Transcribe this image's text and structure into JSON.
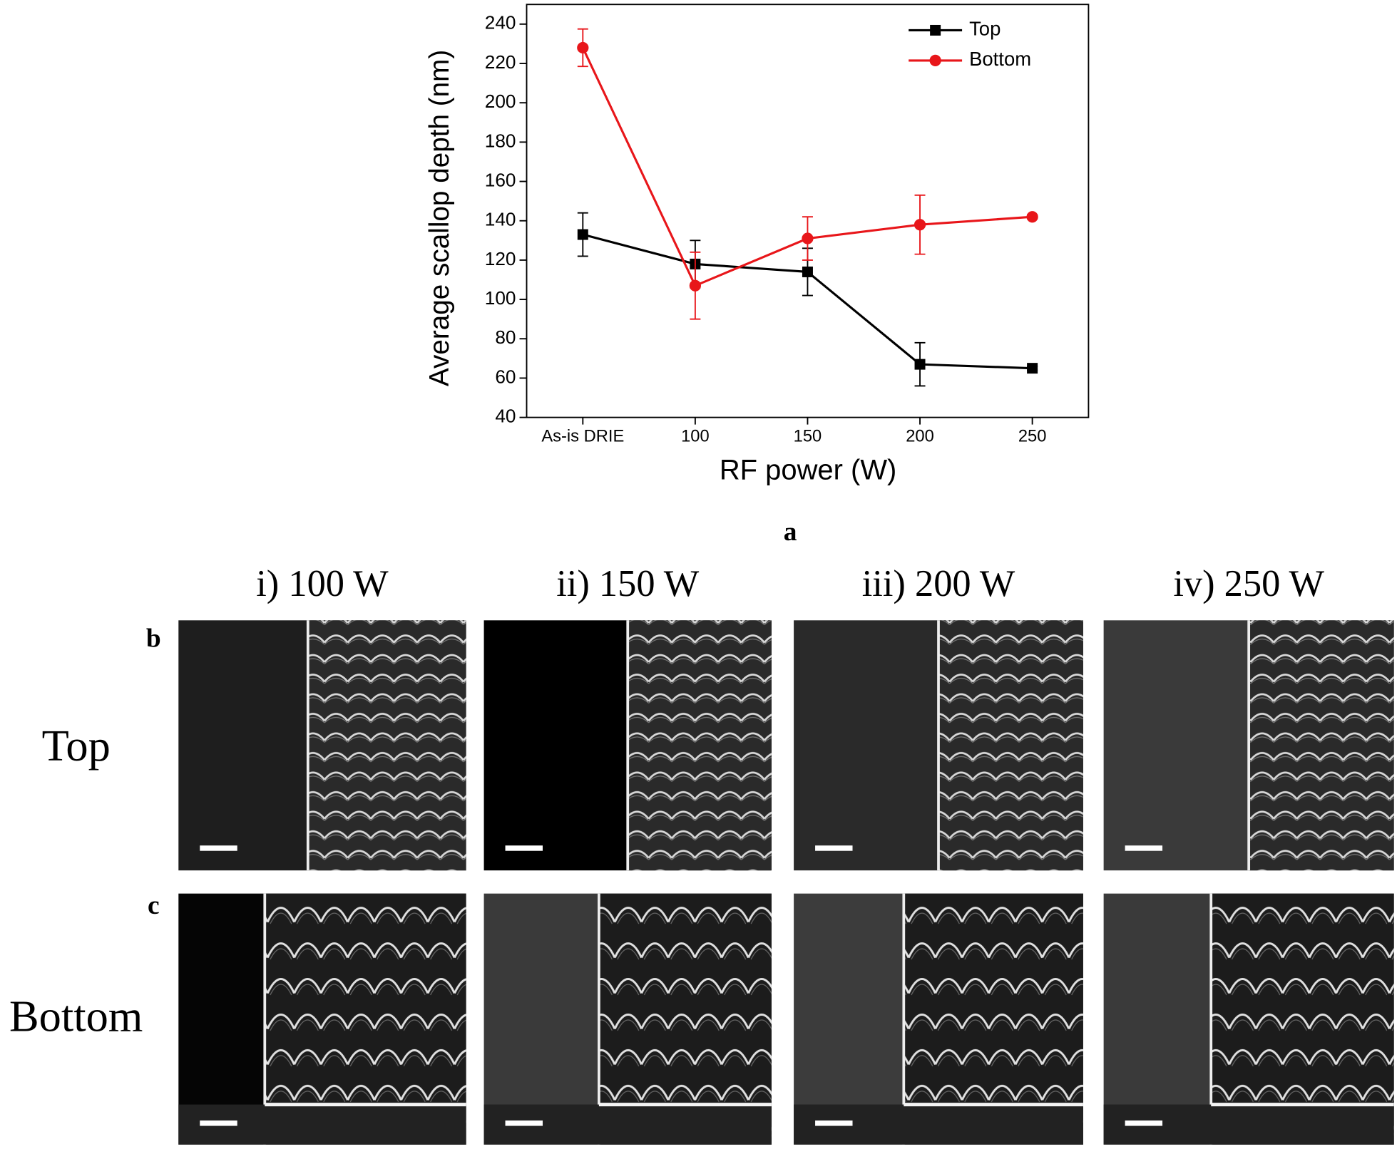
{
  "chart_data": {
    "type": "line",
    "x_label": "RF power (W)",
    "y_label": "Average scallop depth (nm)",
    "categories": [
      "As-is DRIE",
      "100",
      "150",
      "200",
      "250"
    ],
    "series": [
      {
        "name": "Top",
        "color": "#000000",
        "marker": "square",
        "values": [
          133,
          118,
          114,
          67,
          65
        ],
        "errors": [
          11,
          12,
          12,
          11,
          1
        ]
      },
      {
        "name": "Bottom",
        "color": "#e8161a",
        "marker": "circle",
        "values": [
          228,
          107,
          131,
          138,
          142
        ],
        "errors": [
          9.5,
          17,
          11,
          15,
          1
        ]
      }
    ],
    "ylim": [
      40,
      250
    ],
    "yticks": [
      40,
      60,
      80,
      100,
      120,
      140,
      160,
      180,
      200,
      220,
      240
    ],
    "legend": "upper right",
    "grid": false
  },
  "panels": {
    "chart_label": "a",
    "columns": [
      "i) 100 W",
      "ii) 150 W",
      "iii) 200 W",
      "iv) 250 W"
    ],
    "rows": [
      {
        "letter": "b",
        "label": "Top"
      },
      {
        "letter": "c",
        "label": "Bottom"
      }
    ]
  }
}
